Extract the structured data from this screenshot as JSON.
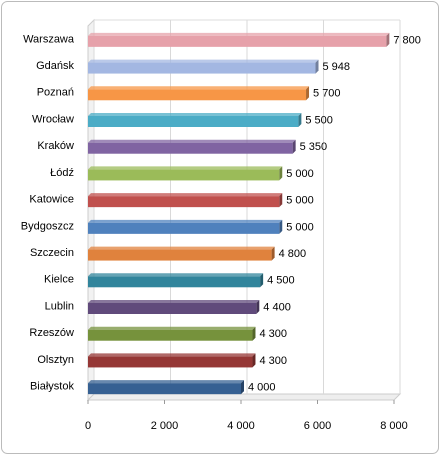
{
  "chart_data": {
    "type": "bar",
    "orientation": "horizontal",
    "categories": [
      "Warszawa",
      "Gdańsk",
      "Poznań",
      "Wrocław",
      "Kraków",
      "Łódź",
      "Katowice",
      "Bydgoszcz",
      "Szczecin",
      "Kielce",
      "Lublin",
      "Rzeszów",
      "Olsztyn",
      "Białystok"
    ],
    "values": [
      7800,
      5948,
      5700,
      5500,
      5350,
      5000,
      5000,
      5000,
      4800,
      4500,
      4400,
      4300,
      4300,
      4000
    ],
    "value_labels": [
      "7 800",
      "5 948",
      "5 700",
      "5 500",
      "5 350",
      "5 000",
      "5 000",
      "5 000",
      "4 800",
      "4 500",
      "4 400",
      "4 300",
      "4 300",
      "4 000"
    ],
    "colors": [
      "#e6a1aa",
      "#a3b7e2",
      "#f79646",
      "#4bacc6",
      "#8064a2",
      "#9bbb59",
      "#c0504d",
      "#4f81bd",
      "#e0823d",
      "#31859c",
      "#604a7b",
      "#76923c",
      "#953735",
      "#366092"
    ],
    "xlim": [
      0,
      8000
    ],
    "xticks": [
      0,
      {
        "value": 2000,
        "label": "2 000"
      },
      {
        "value": 4000,
        "label": "4 000"
      },
      {
        "value": 6000,
        "label": "6 000"
      },
      {
        "value": 8000,
        "label": "8 000"
      }
    ]
  }
}
